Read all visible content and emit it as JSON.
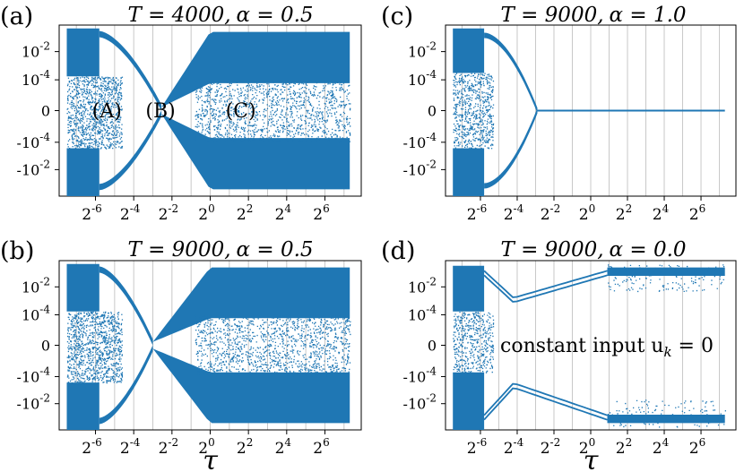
{
  "chart_data": [
    {
      "id": "a",
      "type": "scatter",
      "panel_label": "(a)",
      "title": "T = 4000, α = 0.5",
      "xlabel": "",
      "scale": "log2 (x) / symlog (y)",
      "x_ticks": [
        "2^-6",
        "2^-4",
        "2^-2",
        "2^0",
        "2^2",
        "2^4",
        "2^6"
      ],
      "y_ticks": [
        "10^-2",
        "10^-4",
        "0",
        "-10^-4",
        "-10^-2"
      ],
      "grid": "vertical lines",
      "regions": [
        {
          "label": "(A)",
          "x": 0.045
        },
        {
          "label": "(B)",
          "x": 0.2
        },
        {
          "label": "(C)",
          "x": 4
        }
      ],
      "series": [
        {
          "lower_log2": -7.5,
          "collapse_log2": -2.5,
          "ends_log2": 7.3,
          "steady": "chaotic",
          "color": "#1f77b4"
        }
      ]
    },
    {
      "id": "c",
      "type": "scatter",
      "panel_label": "(c)",
      "title": "T = 9000, α = 1.0",
      "xlabel": "",
      "x_ticks": [
        "2^-6",
        "2^-4",
        "2^-2",
        "2^0",
        "2^2",
        "2^4",
        "2^6"
      ],
      "y_ticks": [
        "10^-2",
        "10^-4",
        "0",
        "-10^-4",
        "-10^-2"
      ],
      "series": [
        {
          "collapse_log2": -2.9,
          "steady": "zero",
          "color": "#1f77b4"
        }
      ]
    },
    {
      "id": "b",
      "type": "scatter",
      "panel_label": "(b)",
      "title": "T = 9000, α = 0.5",
      "xlabel": "τ",
      "x_ticks": [
        "2^-6",
        "2^-4",
        "2^-2",
        "2^0",
        "2^2",
        "2^4",
        "2^6"
      ],
      "y_ticks": [
        "10^-2",
        "10^-4",
        "0",
        "-10^-4",
        "-10^-2"
      ],
      "series": [
        {
          "collapse_log2": -3.0,
          "ends_log2": 7.3,
          "steady": "chaotic",
          "color": "#1f77b4"
        }
      ]
    },
    {
      "id": "d",
      "type": "scatter",
      "panel_label": "(d)",
      "title": "T = 9000, α = 0.0",
      "xlabel": "τ",
      "annotation": "constant input u_k = 0",
      "x_ticks": [
        "2^-6",
        "2^-4",
        "2^-2",
        "2^0",
        "2^2",
        "2^4",
        "2^6"
      ],
      "y_ticks": [
        "10^-2",
        "10^-4",
        "0",
        "-10^-4",
        "-10^-2"
      ],
      "series": [
        {
          "min_log2": -4.2,
          "steady": "oscillating",
          "color": "#1f77b4"
        }
      ]
    }
  ],
  "figure": {
    "panels": [
      {
        "label": "(a)",
        "title_T": "T = 4000,",
        "title_a": "α = 0.5"
      },
      {
        "label": "(c)",
        "title_T": "T = 9000,",
        "title_a": "α = 1.0"
      },
      {
        "label": "(b)",
        "title_T": "T = 9000,",
        "title_a": "α = 0.5"
      },
      {
        "label": "(d)",
        "title_T": "T = 9000,",
        "title_a": "α = 0.0"
      }
    ],
    "annotation_d": "constant input u",
    "annotation_d_sub": "k",
    "annotation_d_tail": " = 0",
    "region_labels": [
      "(A)",
      "(B)",
      "(C)"
    ],
    "xlabel": "τ",
    "x_tick_base": "2",
    "x_tick_exps": [
      "-6",
      "-4",
      "-2",
      "0",
      "2",
      "4",
      "6"
    ],
    "y_tick_labels": [
      {
        "base": "10",
        "exp": "-2"
      },
      {
        "base": "10",
        "exp": "-4"
      },
      {
        "base": "0",
        "exp": ""
      },
      {
        "base": "-10",
        "exp": "-4"
      },
      {
        "base": "-10",
        "exp": "-2"
      }
    ],
    "color": "#1f77b4"
  }
}
